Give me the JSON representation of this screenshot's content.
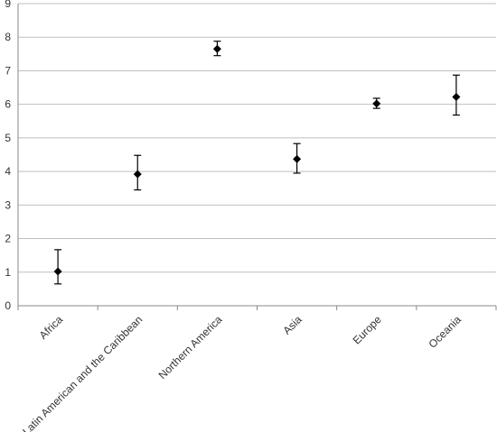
{
  "chart_data": {
    "type": "scatter",
    "title": "",
    "xlabel": "",
    "ylabel": "",
    "ylim": [
      0,
      9
    ],
    "yticks": [
      0,
      1,
      2,
      3,
      4,
      5,
      6,
      7,
      8,
      9
    ],
    "grid": true,
    "legend": "none",
    "marker": "diamond",
    "marker_color": "#000000",
    "categories": [
      "Africa",
      "Latin American and the Caribbean",
      "Northern America",
      "Asia",
      "Europe",
      "Oceania"
    ],
    "series": [
      {
        "values": [
          1.02,
          3.92,
          7.65,
          4.37,
          6.02,
          6.22
        ],
        "error_low": [
          0.65,
          3.45,
          7.45,
          3.95,
          5.88,
          5.68
        ],
        "error_high": [
          1.67,
          4.48,
          7.88,
          4.83,
          6.18,
          6.87
        ]
      }
    ]
  }
}
